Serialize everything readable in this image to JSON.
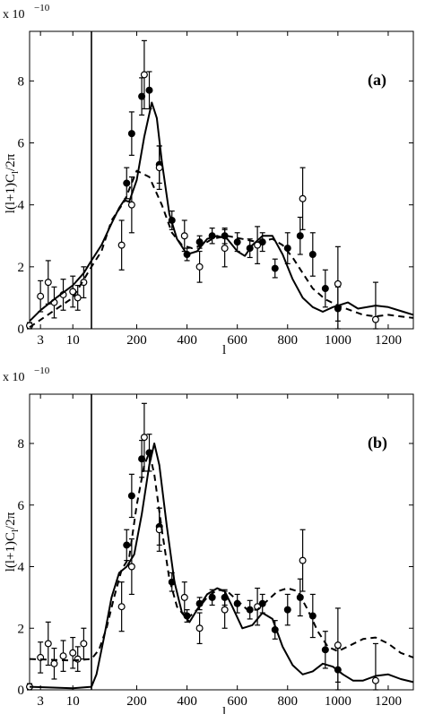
{
  "chart_data": [
    {
      "type": "scatter",
      "panel_tag": "(a)",
      "scale_label": "x 10",
      "scale_exponent": "−10",
      "xlabel": "l",
      "ylabel": "l(l+1)C",
      "ylabel_sub": "l",
      "ylabel_tail": "/2π",
      "x_ticks": [
        "3",
        "10",
        "200",
        "400",
        "600",
        "800",
        "1000",
        "1200"
      ],
      "y_ticks": [
        "0",
        "2",
        "4",
        "6",
        "8"
      ],
      "ylim": [
        0,
        9.6
      ],
      "x_axis": "log scale for l < 20, linear for l ≥ 20 (split marked by vertical line)",
      "vertical_line_l": 20,
      "grid": false,
      "series": [
        {
          "kind": "filled-points",
          "points": [
            {
              "x": 160,
              "y": 4.7,
              "err": 0.5
            },
            {
              "x": 180,
              "y": 6.3,
              "err": 0.7
            },
            {
              "x": 220,
              "y": 7.5,
              "err": 0.6
            },
            {
              "x": 250,
              "y": 7.7,
              "err": 0.6
            },
            {
              "x": 290,
              "y": 5.3,
              "err": 0.6
            },
            {
              "x": 340,
              "y": 3.5,
              "err": 0.3
            },
            {
              "x": 400,
              "y": 2.4,
              "err": 0.2
            },
            {
              "x": 450,
              "y": 2.8,
              "err": 0.2
            },
            {
              "x": 500,
              "y": 3.0,
              "err": 0.25
            },
            {
              "x": 550,
              "y": 3.0,
              "err": 0.25
            },
            {
              "x": 600,
              "y": 2.8,
              "err": 0.3
            },
            {
              "x": 650,
              "y": 2.6,
              "err": 0.3
            },
            {
              "x": 700,
              "y": 2.8,
              "err": 0.3
            },
            {
              "x": 750,
              "y": 1.95,
              "err": 0.3
            },
            {
              "x": 800,
              "y": 2.6,
              "err": 0.5
            },
            {
              "x": 850,
              "y": 3.0,
              "err": 0.6
            },
            {
              "x": 900,
              "y": 2.4,
              "err": 0.7
            },
            {
              "x": 950,
              "y": 1.3,
              "err": 0.6
            },
            {
              "x": 1000,
              "y": 0.65,
              "err": 0.7
            }
          ]
        },
        {
          "kind": "open-points",
          "points": [
            {
              "x": 2,
              "y": 0.1,
              "err": 0.1
            },
            {
              "x": 3,
              "y": 1.05,
              "err": 0.5
            },
            {
              "x": 4,
              "y": 1.5,
              "err": 0.7
            },
            {
              "x": 5,
              "y": 0.85,
              "err": 0.5
            },
            {
              "x": 7,
              "y": 1.1,
              "err": 0.5
            },
            {
              "x": 10,
              "y": 1.2,
              "err": 0.5
            },
            {
              "x": 12,
              "y": 1.0,
              "err": 0.4
            },
            {
              "x": 15,
              "y": 1.5,
              "err": 0.5
            },
            {
              "x": 140,
              "y": 2.7,
              "err": 0.8
            },
            {
              "x": 180,
              "y": 4.0,
              "err": 0.9
            },
            {
              "x": 230,
              "y": 8.2,
              "err": 1.1
            },
            {
              "x": 290,
              "y": 5.2,
              "err": 0.7
            },
            {
              "x": 390,
              "y": 3.0,
              "err": 0.5
            },
            {
              "x": 450,
              "y": 2.0,
              "err": 0.5
            },
            {
              "x": 550,
              "y": 2.6,
              "err": 0.6
            },
            {
              "x": 680,
              "y": 2.7,
              "err": 0.6
            },
            {
              "x": 860,
              "y": 4.2,
              "err": 1.0
            },
            {
              "x": 1000,
              "y": 1.45,
              "err": 1.2
            },
            {
              "x": 1150,
              "y": 0.3,
              "err": 1.2
            }
          ]
        },
        {
          "kind": "solid-curve",
          "points": [
            [
              2,
              0.25
            ],
            [
              3,
              0.6
            ],
            [
              5,
              0.95
            ],
            [
              10,
              1.4
            ],
            [
              15,
              1.8
            ],
            [
              20,
              2.2
            ],
            [
              60,
              2.7
            ],
            [
              100,
              3.4
            ],
            [
              130,
              3.9
            ],
            [
              150,
              4.15
            ],
            [
              170,
              4.1
            ],
            [
              200,
              4.8
            ],
            [
              230,
              6.2
            ],
            [
              260,
              7.3
            ],
            [
              280,
              6.8
            ],
            [
              300,
              5.4
            ],
            [
              330,
              3.7
            ],
            [
              360,
              2.9
            ],
            [
              400,
              2.4
            ],
            [
              440,
              2.5
            ],
            [
              480,
              2.9
            ],
            [
              520,
              3.0
            ],
            [
              560,
              2.9
            ],
            [
              600,
              2.5
            ],
            [
              630,
              2.35
            ],
            [
              660,
              2.7
            ],
            [
              700,
              3.0
            ],
            [
              740,
              3.0
            ],
            [
              780,
              2.4
            ],
            [
              820,
              1.6
            ],
            [
              860,
              1.0
            ],
            [
              900,
              0.7
            ],
            [
              940,
              0.55
            ],
            [
              980,
              0.7
            ],
            [
              1040,
              0.85
            ],
            [
              1080,
              0.65
            ],
            [
              1150,
              0.75
            ],
            [
              1200,
              0.7
            ],
            [
              1260,
              0.55
            ],
            [
              1300,
              0.45
            ]
          ]
        },
        {
          "kind": "dashed-curve",
          "points": [
            [
              2,
              0.05
            ],
            [
              10,
              1.0
            ],
            [
              20,
              2.0
            ],
            [
              60,
              2.5
            ],
            [
              100,
              3.5
            ],
            [
              150,
              4.1
            ],
            [
              200,
              5.1
            ],
            [
              250,
              4.9
            ],
            [
              300,
              4.0
            ],
            [
              340,
              3.1
            ],
            [
              380,
              2.7
            ],
            [
              420,
              2.6
            ],
            [
              460,
              2.7
            ],
            [
              500,
              2.9
            ],
            [
              560,
              3.0
            ],
            [
              620,
              2.9
            ],
            [
              680,
              2.8
            ],
            [
              740,
              2.9
            ],
            [
              780,
              2.7
            ],
            [
              820,
              2.3
            ],
            [
              860,
              1.8
            ],
            [
              900,
              1.3
            ],
            [
              950,
              0.95
            ],
            [
              1000,
              0.75
            ],
            [
              1050,
              0.6
            ],
            [
              1100,
              0.45
            ],
            [
              1150,
              0.4
            ],
            [
              1200,
              0.45
            ],
            [
              1250,
              0.4
            ],
            [
              1300,
              0.35
            ]
          ]
        }
      ]
    },
    {
      "type": "scatter",
      "panel_tag": "(b)",
      "scale_label": "x 10",
      "scale_exponent": "−10",
      "xlabel": "l",
      "ylabel": "l(l+1)C",
      "ylabel_sub": "l",
      "ylabel_tail": "/2π",
      "x_ticks": [
        "3",
        "10",
        "200",
        "400",
        "600",
        "800",
        "1000",
        "1200"
      ],
      "y_ticks": [
        "0",
        "2",
        "4",
        "6",
        "8"
      ],
      "ylim": [
        0,
        9.6
      ],
      "x_axis": "log scale for l < 20, linear for l ≥ 20 (split marked by vertical line)",
      "vertical_line_l": 20,
      "grid": false,
      "series": [
        {
          "kind": "filled-points",
          "points": [
            {
              "x": 160,
              "y": 4.7,
              "err": 0.5
            },
            {
              "x": 180,
              "y": 6.3,
              "err": 0.7
            },
            {
              "x": 220,
              "y": 7.5,
              "err": 0.6
            },
            {
              "x": 250,
              "y": 7.7,
              "err": 0.6
            },
            {
              "x": 290,
              "y": 5.3,
              "err": 0.6
            },
            {
              "x": 340,
              "y": 3.5,
              "err": 0.3
            },
            {
              "x": 400,
              "y": 2.4,
              "err": 0.2
            },
            {
              "x": 450,
              "y": 2.8,
              "err": 0.2
            },
            {
              "x": 500,
              "y": 3.0,
              "err": 0.25
            },
            {
              "x": 550,
              "y": 3.0,
              "err": 0.25
            },
            {
              "x": 600,
              "y": 2.8,
              "err": 0.3
            },
            {
              "x": 650,
              "y": 2.6,
              "err": 0.3
            },
            {
              "x": 700,
              "y": 2.8,
              "err": 0.3
            },
            {
              "x": 750,
              "y": 1.95,
              "err": 0.3
            },
            {
              "x": 800,
              "y": 2.6,
              "err": 0.5
            },
            {
              "x": 850,
              "y": 3.0,
              "err": 0.6
            },
            {
              "x": 900,
              "y": 2.4,
              "err": 0.7
            },
            {
              "x": 950,
              "y": 1.3,
              "err": 0.6
            },
            {
              "x": 1000,
              "y": 0.65,
              "err": 0.7
            }
          ]
        },
        {
          "kind": "open-points",
          "points": [
            {
              "x": 2,
              "y": 0.1,
              "err": 0.1
            },
            {
              "x": 3,
              "y": 1.05,
              "err": 0.5
            },
            {
              "x": 4,
              "y": 1.5,
              "err": 0.7
            },
            {
              "x": 5,
              "y": 0.85,
              "err": 0.5
            },
            {
              "x": 7,
              "y": 1.1,
              "err": 0.5
            },
            {
              "x": 10,
              "y": 1.2,
              "err": 0.5
            },
            {
              "x": 12,
              "y": 1.0,
              "err": 0.4
            },
            {
              "x": 15,
              "y": 1.5,
              "err": 0.5
            },
            {
              "x": 140,
              "y": 2.7,
              "err": 0.8
            },
            {
              "x": 180,
              "y": 4.0,
              "err": 0.9
            },
            {
              "x": 230,
              "y": 8.2,
              "err": 1.1
            },
            {
              "x": 290,
              "y": 5.2,
              "err": 0.7
            },
            {
              "x": 390,
              "y": 3.0,
              "err": 0.5
            },
            {
              "x": 450,
              "y": 2.0,
              "err": 0.5
            },
            {
              "x": 550,
              "y": 2.6,
              "err": 0.6
            },
            {
              "x": 680,
              "y": 2.7,
              "err": 0.6
            },
            {
              "x": 860,
              "y": 4.2,
              "err": 1.0
            },
            {
              "x": 1000,
              "y": 1.45,
              "err": 1.2
            },
            {
              "x": 1150,
              "y": 0.3,
              "err": 1.2
            }
          ]
        },
        {
          "kind": "solid-curve",
          "points": [
            [
              2,
              0.1
            ],
            [
              10,
              0.05
            ],
            [
              20,
              0.1
            ],
            [
              40,
              0.5
            ],
            [
              70,
              1.7
            ],
            [
              100,
              3.0
            ],
            [
              130,
              3.8
            ],
            [
              160,
              4.0
            ],
            [
              190,
              4.4
            ],
            [
              220,
              5.7
            ],
            [
              250,
              7.3
            ],
            [
              270,
              8.0
            ],
            [
              290,
              7.3
            ],
            [
              320,
              5.3
            ],
            [
              350,
              3.5
            ],
            [
              380,
              2.5
            ],
            [
              410,
              2.2
            ],
            [
              440,
              2.6
            ],
            [
              480,
              3.1
            ],
            [
              520,
              3.3
            ],
            [
              550,
              3.2
            ],
            [
              580,
              2.7
            ],
            [
              620,
              2.0
            ],
            [
              660,
              2.1
            ],
            [
              700,
              2.5
            ],
            [
              740,
              2.3
            ],
            [
              780,
              1.4
            ],
            [
              820,
              0.8
            ],
            [
              860,
              0.5
            ],
            [
              900,
              0.6
            ],
            [
              940,
              0.85
            ],
            [
              980,
              0.75
            ],
            [
              1020,
              0.5
            ],
            [
              1060,
              0.3
            ],
            [
              1100,
              0.3
            ],
            [
              1150,
              0.45
            ],
            [
              1200,
              0.5
            ],
            [
              1250,
              0.35
            ],
            [
              1300,
              0.25
            ]
          ]
        },
        {
          "kind": "dashed-curve",
          "points": [
            [
              2,
              1.0
            ],
            [
              10,
              0.95
            ],
            [
              20,
              1.0
            ],
            [
              50,
              1.3
            ],
            [
              80,
              2.0
            ],
            [
              110,
              3.0
            ],
            [
              140,
              3.9
            ],
            [
              170,
              4.3
            ],
            [
              200,
              6.0
            ],
            [
              230,
              7.3
            ],
            [
              250,
              7.7
            ],
            [
              270,
              7.0
            ],
            [
              300,
              5.2
            ],
            [
              330,
              3.6
            ],
            [
              360,
              2.7
            ],
            [
              400,
              2.3
            ],
            [
              440,
              2.6
            ],
            [
              480,
              3.0
            ],
            [
              520,
              3.25
            ],
            [
              560,
              3.2
            ],
            [
              600,
              2.9
            ],
            [
              640,
              2.6
            ],
            [
              680,
              2.6
            ],
            [
              720,
              2.9
            ],
            [
              760,
              3.2
            ],
            [
              800,
              3.3
            ],
            [
              840,
              3.2
            ],
            [
              880,
              2.6
            ],
            [
              920,
              1.9
            ],
            [
              960,
              1.4
            ],
            [
              1000,
              1.25
            ],
            [
              1050,
              1.45
            ],
            [
              1100,
              1.65
            ],
            [
              1150,
              1.7
            ],
            [
              1200,
              1.5
            ],
            [
              1250,
              1.2
            ],
            [
              1300,
              1.05
            ]
          ]
        }
      ]
    }
  ]
}
